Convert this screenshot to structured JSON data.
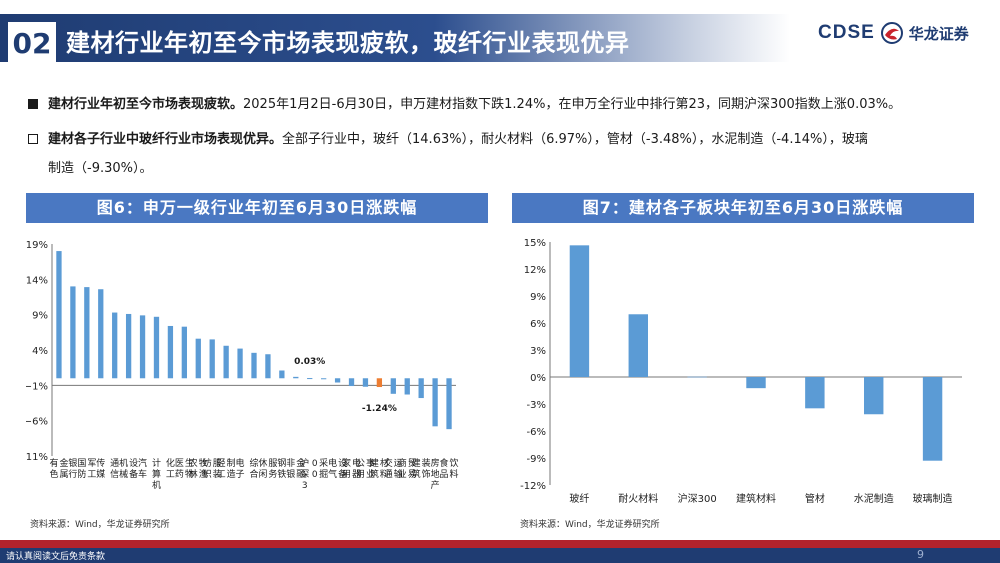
{
  "header": {
    "section_num": "02",
    "title": "建材行业年初至今市场表现疲软，玻纤行业表现优异",
    "logo_en": "CDSE",
    "logo_cn": "华龙证券"
  },
  "bullets": [
    {
      "bold": "建材行业年初至今市场表现疲软。",
      "text": "2025年1月2日-6月30日，申万建材指数下跌1.24%，在申万全行业中排行第23，同期沪深300指数上涨0.03%。"
    },
    {
      "bold": "建材各子行业中玻纤行业市场表现优异。",
      "text": "全部子行业中，玻纤（14.63%），耐火材料（6.97%），管材（-3.48%），水泥制造（-4.14%），玻璃",
      "text2": "制造（-9.30%）。"
    }
  ],
  "figure6": {
    "title": "图6：申万一级行业年初至6月30日涨跌幅",
    "source": "资料来源：Wind，华龙证券研究所"
  },
  "figure7": {
    "title": "图7：建材各子板块年初至6月30日涨跌幅",
    "source": "资料来源：Wind，华龙证券研究所"
  },
  "footer": {
    "disclaimer": "请认真阅读文后免责条款",
    "page": "9"
  },
  "colors": {
    "navy": "#1f3c72",
    "bar_blue": "#5b9bd5",
    "highlight_orange": "#ed7d31",
    "panel_blue": "#4a78c2",
    "footer_red": "#b3232c"
  },
  "chart_data": [
    {
      "type": "bar",
      "title": "图6：申万一级行业年初至6月30日涨跌幅",
      "categories": [
        "有色金属",
        "银行",
        "国防军工",
        "传媒",
        "通信",
        "机械设备",
        "汽车",
        "计算机",
        "化工",
        "医药生物",
        "农林牧渔",
        "纺织服装",
        "轻工制造",
        "电子",
        "综合",
        "休闲服务",
        "钢铁",
        "非银金融",
        "沪深300",
        "采掘",
        "电气设备",
        "家用电器",
        "公用事业",
        "建筑材料",
        "交通运输",
        "商业贸易",
        "建筑装饰",
        "房地产",
        "食品饮料"
      ],
      "values": [
        18.0,
        13.0,
        12.9,
        12.6,
        9.3,
        9.1,
        8.9,
        8.7,
        7.4,
        7.3,
        5.6,
        5.5,
        4.6,
        4.2,
        3.6,
        3.4,
        1.1,
        0.2,
        0.03,
        -0.1,
        -0.6,
        -1.1,
        -1.2,
        -1.24,
        -2.2,
        -2.3,
        -2.8,
        -6.8,
        -7.2
      ],
      "highlight": {
        "category": "建筑材料",
        "label": "-1.24%"
      },
      "annotation": {
        "category": "沪深300",
        "label": "0.03%"
      },
      "ylim": [
        -11,
        19
      ],
      "yticks": [
        19,
        14,
        9,
        4,
        -1,
        -6,
        -11
      ],
      "ytick_labels": [
        "19%",
        "14%",
        "9%",
        "4%",
        "−1%",
        "−6%",
        "−11%"
      ],
      "grid": false
    },
    {
      "type": "bar",
      "title": "图7：建材各子板块年初至6月30日涨跌幅",
      "categories": [
        "玻纤",
        "耐火材料",
        "沪深300",
        "建筑材料",
        "管材",
        "水泥制造",
        "玻璃制造"
      ],
      "values": [
        14.63,
        6.97,
        0.03,
        -1.24,
        -3.48,
        -4.14,
        -9.3
      ],
      "ylim": [
        -12,
        15
      ],
      "yticks": [
        15,
        12,
        9,
        6,
        3,
        0,
        -3,
        -6,
        -9,
        -12
      ],
      "ytick_labels": [
        "15%",
        "12%",
        "9%",
        "6%",
        "3%",
        "0%",
        "-3%",
        "-6%",
        "-9%",
        "-12%"
      ],
      "grid": false
    }
  ]
}
